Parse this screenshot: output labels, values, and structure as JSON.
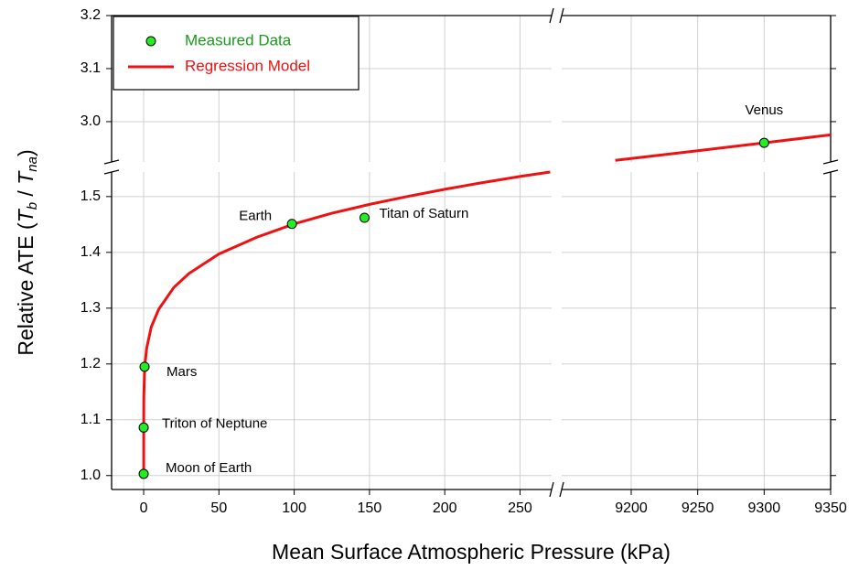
{
  "chart_data": {
    "type": "line",
    "x_label": "Mean Surface Atmospheric Pressure (kPa)",
    "y_label": [
      "Relative ATE (",
      "T",
      "b",
      " / ",
      "T",
      "na",
      ")"
    ],
    "x_panels": [
      {
        "xlim": [
          -21.3,
          271
        ],
        "xticks": [
          0,
          50,
          100,
          150,
          200,
          250
        ]
      },
      {
        "xlim": [
          9147.7,
          9350
        ],
        "xticks": [
          9200,
          9250,
          9300,
          9350
        ]
      }
    ],
    "y_panels": [
      {
        "ylim": [
          0.975,
          1.544
        ],
        "yticks": [
          {
            "value": 1,
            "label": "1.0"
          },
          1.1,
          1.2,
          1.3,
          1.4,
          1.5
        ]
      },
      {
        "ylim": [
          2.924,
          3.2
        ],
        "yticks": [
          {
            "value": 3,
            "label": "3.0"
          },
          3.1,
          3.2
        ]
      }
    ],
    "grid": true,
    "legend": "upper left",
    "series": [
      {
        "name": "Regression Model",
        "color": "#ee1111",
        "x": [
          0,
          0.001,
          0.01,
          0.1,
          0.5,
          1,
          2,
          5,
          10,
          20,
          30,
          50,
          75,
          100,
          125,
          150,
          175,
          200,
          225,
          250,
          270,
          9188,
          9250,
          9300,
          9350
        ],
        "values": [
          1.0,
          1.068,
          1.097,
          1.14,
          1.182,
          1.203,
          1.228,
          1.266,
          1.298,
          1.337,
          1.362,
          1.397,
          1.427,
          1.451,
          1.47,
          1.486,
          1.5,
          1.513,
          1.525,
          1.536,
          1.544,
          2.927,
          2.945,
          2.96,
          2.975
        ]
      },
      {
        "name": "Measured Data",
        "color": "#22ee22",
        "x": [
          0,
          0.0014,
          0.6,
          98.5,
          146.7,
          9300
        ],
        "values": [
          1.003,
          1.086,
          1.195,
          1.451,
          1.462,
          2.96
        ],
        "point_labels": [
          "Moon of Earth",
          "Triton of Neptune",
          "Mars",
          "Earth",
          "Titan of Saturn",
          "Venus"
        ]
      }
    ]
  }
}
